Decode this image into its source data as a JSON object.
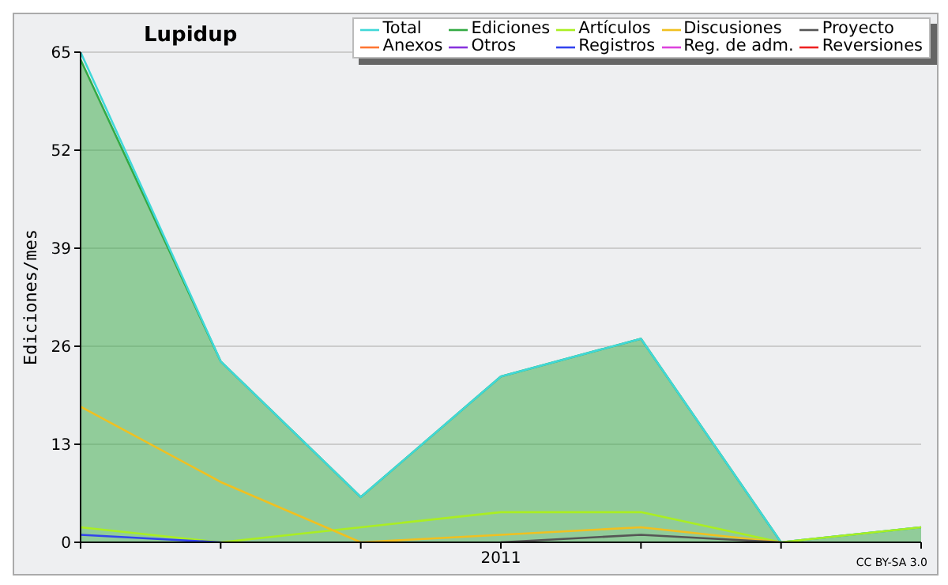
{
  "chart_data": {
    "type": "line",
    "title": "Lupidup",
    "ylabel": "Ediciones/mes",
    "annotations": [
      "CC BY-SA 3.0"
    ],
    "categories": [
      null,
      null,
      null,
      "2011",
      null,
      null,
      null
    ],
    "ylim": [
      0,
      65
    ],
    "yticks": [
      0,
      13,
      26,
      39,
      52,
      65
    ],
    "grid": "y",
    "legend": "top right",
    "marker": "none",
    "series": [
      {
        "name": "Total",
        "color": "#40d8d8",
        "values": [
          65,
          24,
          6,
          22,
          27,
          0,
          2
        ]
      },
      {
        "name": "Ediciones",
        "type": "area",
        "color": "#33aa44",
        "values": [
          64,
          24,
          6,
          22,
          27,
          0,
          2
        ]
      },
      {
        "name": "Artículos",
        "color": "#aaee22",
        "values": [
          2,
          0,
          2,
          4,
          4,
          0,
          2
        ]
      },
      {
        "name": "Discusiones",
        "color": "#f0c020",
        "values": [
          18,
          8,
          0,
          1,
          2,
          0,
          null
        ]
      },
      {
        "name": "Proyecto",
        "color": "#555555",
        "values": [
          null,
          null,
          null,
          0,
          1,
          0,
          null
        ]
      },
      {
        "name": "Anexos",
        "color": "#ff7733",
        "values": [
          null,
          null,
          null,
          null,
          null,
          null,
          null
        ]
      },
      {
        "name": "Otros",
        "color": "#8833dd",
        "values": [
          null,
          null,
          null,
          null,
          null,
          null,
          null
        ]
      },
      {
        "name": "Registros",
        "color": "#3344ee",
        "values": [
          1,
          0,
          null,
          null,
          null,
          null,
          null
        ]
      },
      {
        "name": "Reg. de adm.",
        "color": "#dd44dd",
        "values": [
          null,
          null,
          null,
          null,
          null,
          null,
          null
        ]
      },
      {
        "name": "Reversiones",
        "color": "#ee2222",
        "values": [
          null,
          null,
          null,
          null,
          null,
          null,
          null
        ]
      }
    ]
  }
}
